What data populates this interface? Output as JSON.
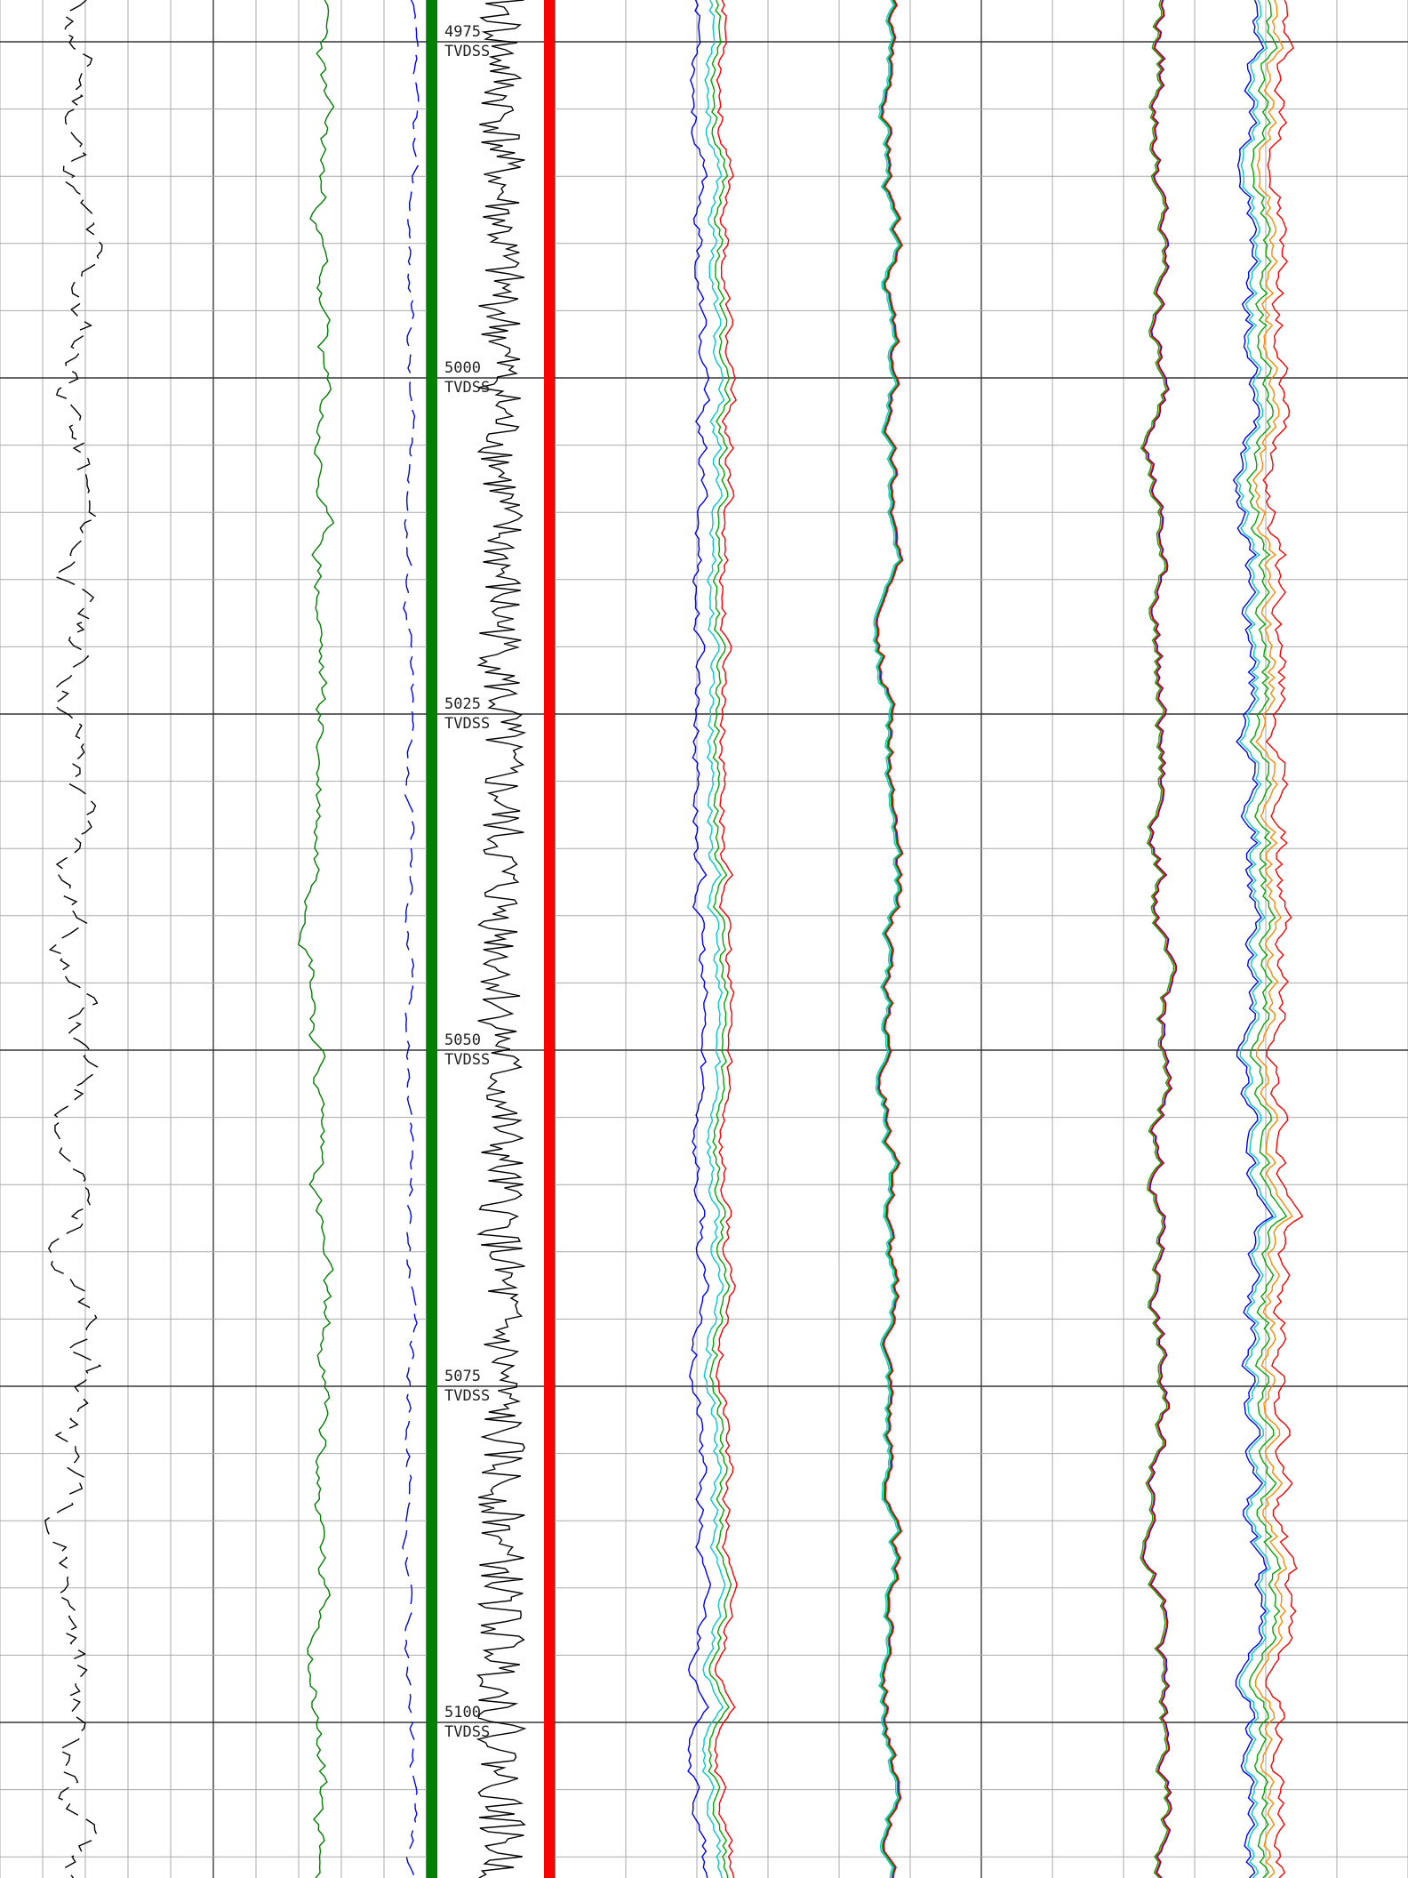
{
  "chart_data": {
    "type": "line",
    "title": "",
    "depth_unit": "TVDSS",
    "depth_range": [
      4970,
      5110
    ],
    "depth_ticks": [
      {
        "value": "4975",
        "unit": "TVDSS"
      },
      {
        "value": "5000",
        "unit": "TVDSS"
      },
      {
        "value": "5025",
        "unit": "TVDSS"
      },
      {
        "value": "5050",
        "unit": "TVDSS"
      },
      {
        "value": "5075",
        "unit": "TVDSS"
      },
      {
        "value": "5100",
        "unit": "TVDSS"
      }
    ],
    "grid": true,
    "depth_step_major": 25,
    "depth_step_minor": 5,
    "tracks": [
      {
        "id": "track-1",
        "curves": [
          {
            "color": "#000000",
            "style": "dashed",
            "base": 0.36,
            "amplitude": 0.22,
            "seed": 11
          }
        ]
      },
      {
        "id": "track-2",
        "curves": [
          {
            "color": "#008000",
            "style": "solid",
            "base": 0.5,
            "amplitude": 0.1,
            "seed": 23
          },
          {
            "color": "#0000ff",
            "style": "dashed",
            "base": 0.92,
            "amplitude": 0.05,
            "seed": 37
          }
        ]
      },
      {
        "id": "depth-track",
        "lithology_colors": [
          "#008000",
          "#ff0000"
        ],
        "curves": [
          {
            "color": "#000000",
            "style": "solid",
            "base": 0.6,
            "amplitude": 0.22,
            "seed": 41
          }
        ]
      },
      {
        "id": "track-4",
        "curves": [
          {
            "color": "#0000ff",
            "style": "solid",
            "base": 0.34,
            "amplitude": 0.04,
            "seed": 53
          },
          {
            "color": "#00cccc",
            "style": "solid",
            "base": 0.37,
            "amplitude": 0.04,
            "seed": 53
          },
          {
            "color": "#00aa00",
            "style": "solid",
            "base": 0.38,
            "amplitude": 0.04,
            "seed": 53
          },
          {
            "color": "#ff0000",
            "style": "solid",
            "base": 0.39,
            "amplitude": 0.04,
            "seed": 53
          },
          {
            "color": "#0000ff",
            "style": "solid",
            "base": 0.79,
            "amplitude": 0.04,
            "seed": 67
          },
          {
            "color": "#00cccc",
            "style": "solid",
            "base": 0.78,
            "amplitude": 0.04,
            "seed": 67
          },
          {
            "color": "#00aa00",
            "style": "solid",
            "base": 0.78,
            "amplitude": 0.04,
            "seed": 67
          },
          {
            "color": "#ff0000",
            "style": "solid",
            "base": 0.78,
            "amplitude": 0.04,
            "seed": 67
          }
        ]
      },
      {
        "id": "track-5",
        "curves": [
          {
            "color": "#0000ff",
            "style": "solid",
            "base": 0.42,
            "amplitude": 0.05,
            "seed": 79
          },
          {
            "color": "#00aa00",
            "style": "solid",
            "base": 0.41,
            "amplitude": 0.05,
            "seed": 79
          },
          {
            "color": "#ff0000",
            "style": "solid",
            "base": 0.41,
            "amplitude": 0.05,
            "seed": 79
          },
          {
            "color": "#0000ff",
            "style": "solid",
            "base": 0.62,
            "amplitude": 0.06,
            "seed": 97
          },
          {
            "color": "#00cccc",
            "style": "solid",
            "base": 0.64,
            "amplitude": 0.06,
            "seed": 97
          },
          {
            "color": "#00aa00",
            "style": "solid",
            "base": 0.66,
            "amplitude": 0.06,
            "seed": 97
          },
          {
            "color": "#ff8800",
            "style": "solid",
            "base": 0.67,
            "amplitude": 0.06,
            "seed": 97
          },
          {
            "color": "#ff0000",
            "style": "solid",
            "base": 0.69,
            "amplitude": 0.06,
            "seed": 97
          }
        ]
      }
    ]
  }
}
